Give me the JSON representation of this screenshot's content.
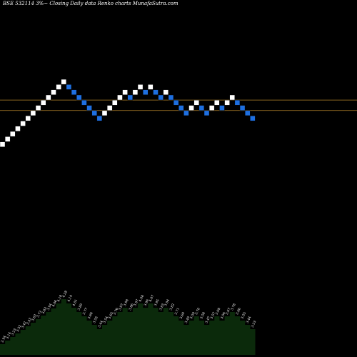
{
  "chart_data": {
    "type": "renko",
    "title": "BSE 532114  3%~ Closing Daily data  Renko  charts MunafaSutra.com",
    "colors": {
      "background": "#000000",
      "up_brick": "#ffffff",
      "down_brick": "#1e6fe0",
      "reference_line": "#b8862b",
      "volume_area": "#0b2a0b",
      "label_text": "#ffffff"
    },
    "bricks": [
      {
        "dir": "up",
        "level": 1
      },
      {
        "dir": "up",
        "level": 2
      },
      {
        "dir": "up",
        "level": 3
      },
      {
        "dir": "up",
        "level": 4
      },
      {
        "dir": "up",
        "level": 5
      },
      {
        "dir": "up",
        "level": 6
      },
      {
        "dir": "up",
        "level": 7
      },
      {
        "dir": "up",
        "level": 8
      },
      {
        "dir": "up",
        "level": 9
      },
      {
        "dir": "up",
        "level": 10
      },
      {
        "dir": "up",
        "level": 11
      },
      {
        "dir": "up",
        "level": 12
      },
      {
        "dir": "up",
        "level": 13
      },
      {
        "dir": "down",
        "level": 12
      },
      {
        "dir": "down",
        "level": 11
      },
      {
        "dir": "down",
        "level": 10
      },
      {
        "dir": "down",
        "level": 9
      },
      {
        "dir": "down",
        "level": 8
      },
      {
        "dir": "down",
        "level": 7
      },
      {
        "dir": "down",
        "level": 6
      },
      {
        "dir": "up",
        "level": 7
      },
      {
        "dir": "up",
        "level": 8
      },
      {
        "dir": "up",
        "level": 9
      },
      {
        "dir": "up",
        "level": 10
      },
      {
        "dir": "up",
        "level": 11
      },
      {
        "dir": "down",
        "level": 10
      },
      {
        "dir": "up",
        "level": 11
      },
      {
        "dir": "up",
        "level": 12
      },
      {
        "dir": "down",
        "level": 11
      },
      {
        "dir": "up",
        "level": 12
      },
      {
        "dir": "down",
        "level": 11
      },
      {
        "dir": "down",
        "level": 10
      },
      {
        "dir": "up",
        "level": 11
      },
      {
        "dir": "down",
        "level": 10
      },
      {
        "dir": "down",
        "level": 9
      },
      {
        "dir": "down",
        "level": 8
      },
      {
        "dir": "down",
        "level": 7
      },
      {
        "dir": "up",
        "level": 8
      },
      {
        "dir": "up",
        "level": 9
      },
      {
        "dir": "down",
        "level": 8
      },
      {
        "dir": "down",
        "level": 7
      },
      {
        "dir": "up",
        "level": 8
      },
      {
        "dir": "up",
        "level": 9
      },
      {
        "dir": "down",
        "level": 8
      },
      {
        "dir": "up",
        "level": 9
      },
      {
        "dir": "up",
        "level": 10
      },
      {
        "dir": "down",
        "level": 9
      },
      {
        "dir": "down",
        "level": 8
      },
      {
        "dir": "down",
        "level": 7
      },
      {
        "dir": "down",
        "level": 6
      }
    ],
    "reference_lines": [
      {
        "level": 9.5
      },
      {
        "level": 7.5
      }
    ],
    "volume_labels": [
      "2.94",
      "3.14",
      "3.23",
      "3.32",
      "3.42",
      "3.53",
      "3.63",
      "3.73",
      "3.83",
      "3.94",
      "4.06",
      "4.18",
      "4.28",
      "4.14",
      "4.01",
      "3.89",
      "3.77",
      "3.66",
      "3.55",
      "3.44",
      "3.54",
      "3.65",
      "3.76",
      "3.87",
      "3.98",
      "3.86",
      "3.97",
      "4.08",
      "3.96",
      "4.07",
      "3.95",
      "3.83",
      "3.94",
      "3.82",
      "3.71",
      "3.60",
      "3.49",
      "3.59",
      "3.70",
      "3.58",
      "3.47",
      "3.57",
      "3.68",
      "3.56",
      "3.67",
      "3.78",
      "3.66",
      "3.55",
      "3.44",
      "3.33"
    ],
    "volume_values": [
      15,
      20,
      25,
      30,
      35,
      40,
      45,
      50,
      55,
      60,
      65,
      72,
      78,
      72,
      66,
      60,
      54,
      48,
      42,
      36,
      42,
      48,
      54,
      60,
      66,
      60,
      66,
      72,
      66,
      72,
      66,
      60,
      66,
      60,
      54,
      48,
      42,
      48,
      54,
      48,
      42,
      48,
      54,
      48,
      54,
      60,
      54,
      48,
      42,
      36
    ]
  }
}
